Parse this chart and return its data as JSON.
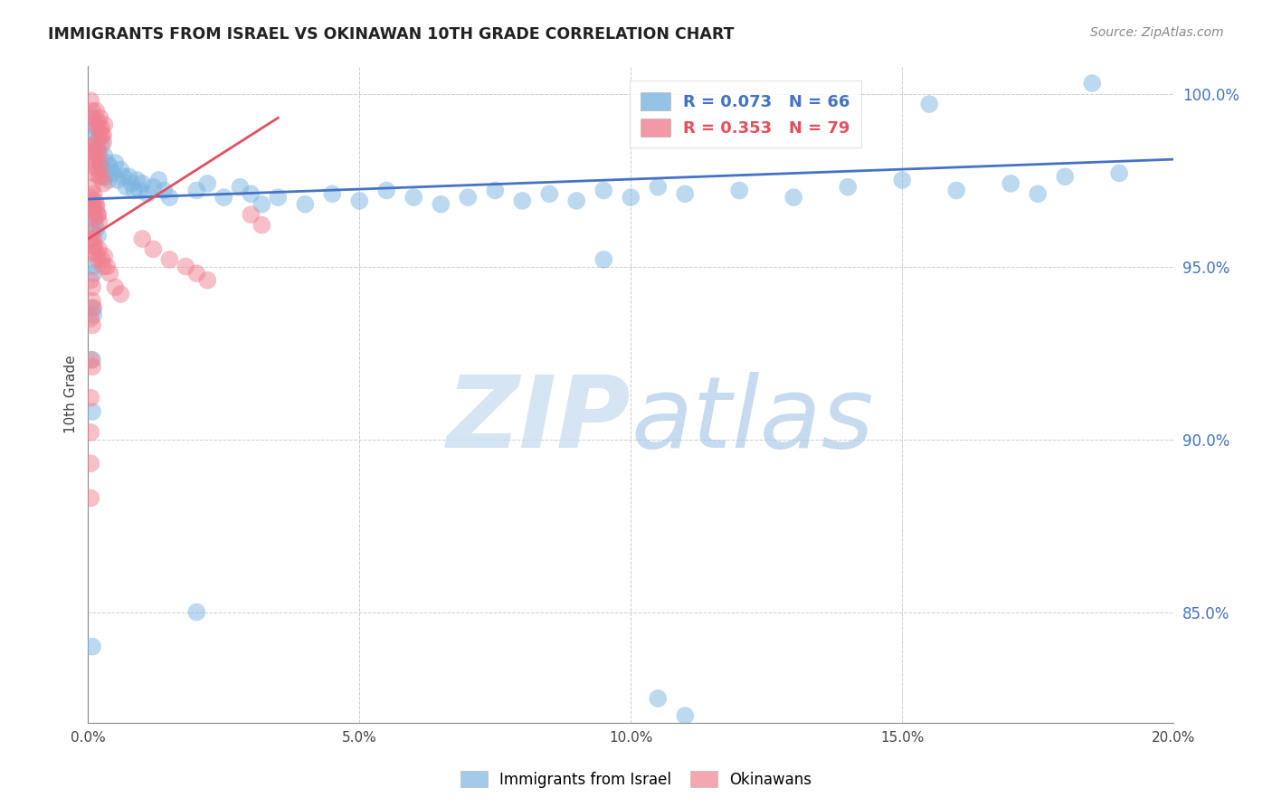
{
  "title": "IMMIGRANTS FROM ISRAEL VS OKINAWAN 10TH GRADE CORRELATION CHART",
  "source_text": "Source: ZipAtlas.com",
  "ylabel": "10th Grade",
  "xlim": [
    0.0,
    0.2
  ],
  "ylim": [
    0.818,
    1.008
  ],
  "xtick_labels": [
    "0.0%",
    "5.0%",
    "10.0%",
    "15.0%",
    "20.0%"
  ],
  "xtick_vals": [
    0.0,
    0.05,
    0.1,
    0.15,
    0.2
  ],
  "ytick_labels": [
    "85.0%",
    "90.0%",
    "95.0%",
    "100.0%"
  ],
  "ytick_vals": [
    0.85,
    0.9,
    0.95,
    1.0
  ],
  "watermark_zip": "ZIP",
  "watermark_atlas": "atlas",
  "blue_color": "#7ab5e0",
  "pink_color": "#f08090",
  "blue_line_color": "#4472c4",
  "pink_line_color": "#e05060",
  "blue_dots": [
    [
      0.0008,
      0.993
    ],
    [
      0.001,
      0.988
    ],
    [
      0.0012,
      0.985
    ],
    [
      0.0015,
      0.99
    ],
    [
      0.0018,
      0.983
    ],
    [
      0.002,
      0.987
    ],
    [
      0.0022,
      0.98
    ],
    [
      0.0025,
      0.985
    ],
    [
      0.0028,
      0.978
    ],
    [
      0.003,
      0.982
    ],
    [
      0.0032,
      0.976
    ],
    [
      0.0035,
      0.98
    ],
    [
      0.0038,
      0.975
    ],
    [
      0.004,
      0.979
    ],
    [
      0.0045,
      0.977
    ],
    [
      0.005,
      0.98
    ],
    [
      0.0055,
      0.975
    ],
    [
      0.006,
      0.978
    ],
    [
      0.0065,
      0.976
    ],
    [
      0.007,
      0.973
    ],
    [
      0.0075,
      0.976
    ],
    [
      0.008,
      0.974
    ],
    [
      0.0085,
      0.972
    ],
    [
      0.009,
      0.975
    ],
    [
      0.0095,
      0.972
    ],
    [
      0.01,
      0.974
    ],
    [
      0.011,
      0.971
    ],
    [
      0.012,
      0.973
    ],
    [
      0.013,
      0.975
    ],
    [
      0.014,
      0.972
    ],
    [
      0.015,
      0.97
    ],
    [
      0.02,
      0.972
    ],
    [
      0.022,
      0.974
    ],
    [
      0.025,
      0.97
    ],
    [
      0.028,
      0.973
    ],
    [
      0.03,
      0.971
    ],
    [
      0.032,
      0.968
    ],
    [
      0.035,
      0.97
    ],
    [
      0.04,
      0.968
    ],
    [
      0.045,
      0.971
    ],
    [
      0.05,
      0.969
    ],
    [
      0.055,
      0.972
    ],
    [
      0.06,
      0.97
    ],
    [
      0.065,
      0.968
    ],
    [
      0.07,
      0.97
    ],
    [
      0.075,
      0.972
    ],
    [
      0.08,
      0.969
    ],
    [
      0.085,
      0.971
    ],
    [
      0.09,
      0.969
    ],
    [
      0.095,
      0.972
    ],
    [
      0.1,
      0.97
    ],
    [
      0.105,
      0.973
    ],
    [
      0.11,
      0.971
    ],
    [
      0.12,
      0.972
    ],
    [
      0.13,
      0.97
    ],
    [
      0.14,
      0.973
    ],
    [
      0.15,
      0.975
    ],
    [
      0.16,
      0.972
    ],
    [
      0.17,
      0.974
    ],
    [
      0.175,
      0.971
    ],
    [
      0.18,
      0.976
    ],
    [
      0.19,
      0.977
    ],
    [
      0.0008,
      0.968
    ],
    [
      0.001,
      0.965
    ],
    [
      0.0012,
      0.963
    ],
    [
      0.0015,
      0.961
    ],
    [
      0.0018,
      0.959
    ],
    [
      0.0008,
      0.95
    ],
    [
      0.001,
      0.948
    ],
    [
      0.0008,
      0.938
    ],
    [
      0.001,
      0.936
    ],
    [
      0.0008,
      0.923
    ],
    [
      0.0008,
      0.908
    ],
    [
      0.0008,
      0.84
    ],
    [
      0.02,
      0.85
    ],
    [
      0.105,
      0.825
    ],
    [
      0.11,
      0.82
    ],
    [
      0.155,
      0.997
    ],
    [
      0.185,
      1.003
    ],
    [
      0.095,
      0.952
    ]
  ],
  "pink_dots": [
    [
      0.0005,
      0.998
    ],
    [
      0.0008,
      0.995
    ],
    [
      0.001,
      0.993
    ],
    [
      0.0012,
      0.991
    ],
    [
      0.0015,
      0.995
    ],
    [
      0.0018,
      0.992
    ],
    [
      0.002,
      0.99
    ],
    [
      0.0022,
      0.993
    ],
    [
      0.0025,
      0.99
    ],
    [
      0.0028,
      0.988
    ],
    [
      0.003,
      0.991
    ],
    [
      0.0005,
      0.983
    ],
    [
      0.0008,
      0.981
    ],
    [
      0.001,
      0.979
    ],
    [
      0.0012,
      0.977
    ],
    [
      0.0015,
      0.981
    ],
    [
      0.0018,
      0.978
    ],
    [
      0.002,
      0.976
    ],
    [
      0.0022,
      0.979
    ],
    [
      0.0025,
      0.976
    ],
    [
      0.0028,
      0.974
    ],
    [
      0.0005,
      0.97
    ],
    [
      0.0008,
      0.968
    ],
    [
      0.001,
      0.966
    ],
    [
      0.0012,
      0.964
    ],
    [
      0.0015,
      0.968
    ],
    [
      0.0018,
      0.965
    ],
    [
      0.002,
      0.963
    ],
    [
      0.0005,
      0.958
    ],
    [
      0.0008,
      0.956
    ],
    [
      0.001,
      0.954
    ],
    [
      0.0005,
      0.946
    ],
    [
      0.0008,
      0.944
    ],
    [
      0.0005,
      0.935
    ],
    [
      0.0008,
      0.933
    ],
    [
      0.0005,
      0.923
    ],
    [
      0.0008,
      0.921
    ],
    [
      0.0005,
      0.912
    ],
    [
      0.0005,
      0.902
    ],
    [
      0.0005,
      0.893
    ],
    [
      0.0005,
      0.883
    ],
    [
      0.001,
      0.985
    ],
    [
      0.0012,
      0.983
    ],
    [
      0.0015,
      0.986
    ],
    [
      0.0018,
      0.984
    ],
    [
      0.002,
      0.982
    ],
    [
      0.0025,
      0.988
    ],
    [
      0.0028,
      0.986
    ],
    [
      0.01,
      0.958
    ],
    [
      0.012,
      0.955
    ],
    [
      0.015,
      0.952
    ],
    [
      0.018,
      0.95
    ],
    [
      0.02,
      0.948
    ],
    [
      0.022,
      0.946
    ],
    [
      0.0008,
      0.973
    ],
    [
      0.001,
      0.971
    ],
    [
      0.0012,
      0.969
    ],
    [
      0.0015,
      0.967
    ],
    [
      0.0018,
      0.965
    ],
    [
      0.03,
      0.965
    ],
    [
      0.032,
      0.962
    ],
    [
      0.0008,
      0.94
    ],
    [
      0.001,
      0.938
    ],
    [
      0.005,
      0.944
    ],
    [
      0.006,
      0.942
    ],
    [
      0.0008,
      0.96
    ],
    [
      0.001,
      0.958
    ],
    [
      0.0012,
      0.956
    ],
    [
      0.0015,
      0.954
    ],
    [
      0.0018,
      0.952
    ],
    [
      0.002,
      0.955
    ],
    [
      0.0025,
      0.952
    ],
    [
      0.0028,
      0.95
    ],
    [
      0.003,
      0.953
    ],
    [
      0.0035,
      0.95
    ],
    [
      0.004,
      0.948
    ]
  ],
  "blue_trend_x": [
    0.0,
    0.2
  ],
  "blue_trend_y": [
    0.9695,
    0.981
  ],
  "pink_trend_x": [
    0.0,
    0.035
  ],
  "pink_trend_y": [
    0.958,
    0.993
  ]
}
